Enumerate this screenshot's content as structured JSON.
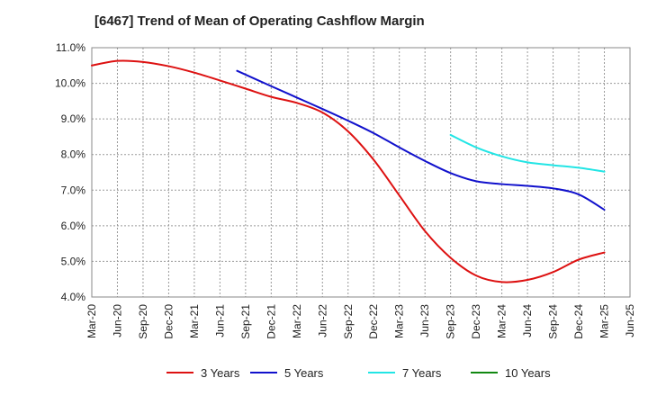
{
  "chart_data": {
    "type": "line",
    "title": "[6467]  Trend of Mean of Operating Cashflow Margin",
    "xlabel": "",
    "ylabel": "",
    "ylim": [
      4.0,
      11.0
    ],
    "y_ticks": [
      "4.0%",
      "5.0%",
      "6.0%",
      "7.0%",
      "8.0%",
      "9.0%",
      "10.0%",
      "11.0%"
    ],
    "categories": [
      "Mar-20",
      "Jun-20",
      "Sep-20",
      "Dec-20",
      "Mar-21",
      "Jun-21",
      "Sep-21",
      "Dec-21",
      "Mar-22",
      "Jun-22",
      "Sep-22",
      "Dec-22",
      "Mar-23",
      "Jun-23",
      "Sep-23",
      "Dec-23",
      "Mar-24",
      "Jun-24",
      "Sep-24",
      "Dec-24",
      "Mar-25",
      "Jun-25"
    ],
    "grid": true,
    "legend_position": "bottom",
    "series": [
      {
        "name": "3 Years",
        "color": "#dd1111",
        "points": [
          [
            0,
            10.5
          ],
          [
            1,
            10.63
          ],
          [
            2,
            10.6
          ],
          [
            3,
            10.48
          ],
          [
            4,
            10.3
          ],
          [
            5,
            10.08
          ],
          [
            6,
            9.85
          ],
          [
            7,
            9.62
          ],
          [
            8,
            9.45
          ],
          [
            9,
            9.18
          ],
          [
            10,
            8.65
          ],
          [
            11,
            7.85
          ],
          [
            12,
            6.85
          ],
          [
            13,
            5.85
          ],
          [
            14,
            5.1
          ],
          [
            15,
            4.6
          ],
          [
            16,
            4.42
          ],
          [
            17,
            4.48
          ],
          [
            18,
            4.7
          ],
          [
            19,
            5.05
          ],
          [
            20,
            5.25
          ]
        ]
      },
      {
        "name": "5 Years",
        "color": "#1111cc",
        "points": [
          [
            5.67,
            10.35
          ],
          [
            7,
            9.92
          ],
          [
            8,
            9.6
          ],
          [
            9,
            9.28
          ],
          [
            10,
            8.95
          ],
          [
            11,
            8.6
          ],
          [
            12,
            8.2
          ],
          [
            13,
            7.82
          ],
          [
            14,
            7.48
          ],
          [
            15,
            7.25
          ],
          [
            16,
            7.17
          ],
          [
            17,
            7.12
          ],
          [
            18,
            7.05
          ],
          [
            19,
            6.88
          ],
          [
            20,
            6.45
          ]
        ]
      },
      {
        "name": "7 Years",
        "color": "#22e5e5",
        "points": [
          [
            14,
            8.55
          ],
          [
            15,
            8.2
          ],
          [
            16,
            7.95
          ],
          [
            17,
            7.78
          ],
          [
            18,
            7.7
          ],
          [
            19,
            7.63
          ],
          [
            20,
            7.52
          ]
        ]
      },
      {
        "name": "10 Years",
        "color": "#118811",
        "points": []
      }
    ]
  }
}
